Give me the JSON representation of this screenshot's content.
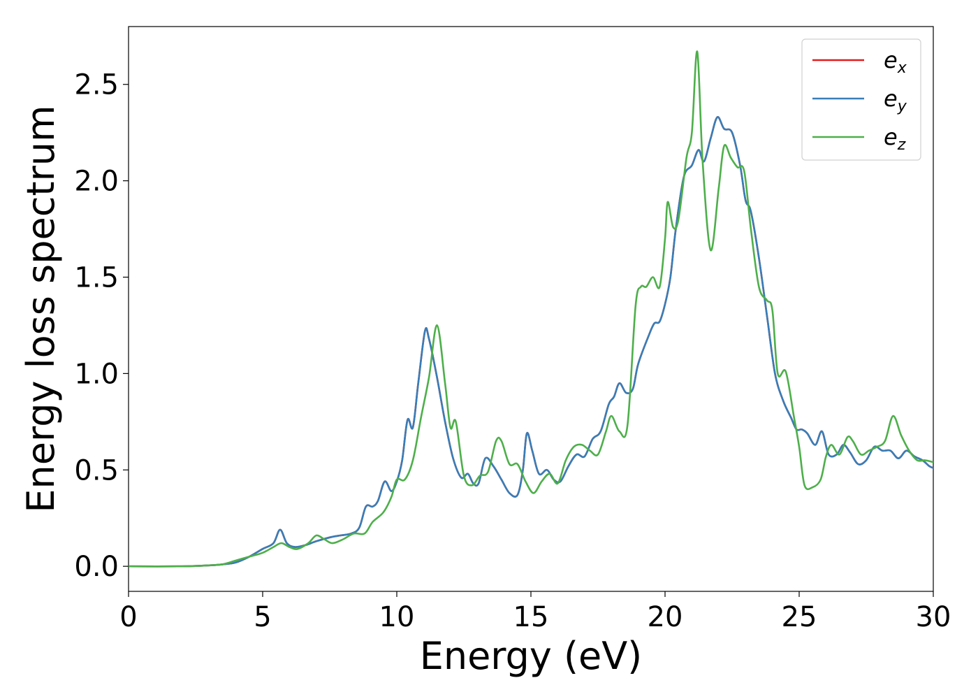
{
  "chart_data": {
    "type": "line",
    "title": "",
    "xlabel": "Energy (eV)",
    "ylabel": "Energy loss spectrum",
    "xlim": [
      0,
      30
    ],
    "ylim": [
      -0.13,
      2.8
    ],
    "xticks": [
      0,
      5,
      10,
      15,
      20,
      25,
      30
    ],
    "xtick_labels": [
      "0",
      "5",
      "10",
      "15",
      "20",
      "25",
      "30"
    ],
    "yticks": [
      0.0,
      0.5,
      1.0,
      1.5,
      2.0,
      2.5
    ],
    "ytick_labels": [
      "0.0",
      "0.5",
      "1.0",
      "1.5",
      "2.0",
      "2.5"
    ],
    "grid": false,
    "legend_position": "top-right",
    "series": [
      {
        "name": "e_x",
        "legend_base": "e",
        "legend_sub": "x",
        "color": "#e41a1c",
        "x": [
          0,
          2,
          3,
          3.5,
          4,
          4.5,
          5,
          5.4,
          5.65,
          5.9,
          6.2,
          6.6,
          7,
          7.5,
          7.9,
          8.3,
          8.6,
          8.85,
          9.1,
          9.3,
          9.55,
          9.8,
          10.0,
          10.2,
          10.4,
          10.6,
          10.8,
          11.05,
          11.2,
          11.5,
          11.8,
          12.1,
          12.4,
          12.65,
          12.85,
          13.05,
          13.3,
          13.6,
          13.9,
          14.2,
          14.5,
          14.7,
          14.85,
          15.05,
          15.3,
          15.6,
          15.85,
          16.1,
          16.4,
          16.7,
          17.0,
          17.3,
          17.6,
          17.9,
          18.1,
          18.3,
          18.55,
          18.8,
          19.0,
          19.4,
          19.6,
          19.8,
          20.0,
          20.2,
          20.4,
          20.7,
          21.0,
          21.25,
          21.45,
          21.7,
          21.95,
          22.2,
          22.5,
          22.8,
          23.0,
          23.2,
          23.5,
          23.8,
          24.1,
          24.4,
          24.7,
          24.9,
          25.1,
          25.3,
          25.6,
          25.85,
          26.1,
          26.4,
          26.65,
          26.9,
          27.2,
          27.5,
          27.8,
          28.1,
          28.4,
          28.7,
          29.0,
          29.3,
          29.6,
          29.85,
          30
        ],
        "y": [
          0.0,
          0.0,
          0.005,
          0.01,
          0.02,
          0.05,
          0.09,
          0.12,
          0.19,
          0.12,
          0.1,
          0.11,
          0.13,
          0.15,
          0.16,
          0.17,
          0.2,
          0.31,
          0.31,
          0.34,
          0.44,
          0.39,
          0.44,
          0.55,
          0.76,
          0.72,
          0.95,
          1.22,
          1.18,
          0.98,
          0.75,
          0.56,
          0.46,
          0.48,
          0.43,
          0.43,
          0.56,
          0.52,
          0.45,
          0.38,
          0.37,
          0.5,
          0.69,
          0.6,
          0.48,
          0.5,
          0.45,
          0.44,
          0.52,
          0.58,
          0.57,
          0.66,
          0.7,
          0.84,
          0.88,
          0.95,
          0.9,
          0.92,
          1.05,
          1.2,
          1.26,
          1.27,
          1.36,
          1.5,
          1.75,
          2.02,
          2.08,
          2.16,
          2.1,
          2.22,
          2.33,
          2.27,
          2.25,
          2.08,
          1.9,
          1.84,
          1.6,
          1.3,
          1.0,
          0.86,
          0.77,
          0.71,
          0.71,
          0.69,
          0.63,
          0.7,
          0.58,
          0.58,
          0.63,
          0.59,
          0.53,
          0.55,
          0.62,
          0.6,
          0.6,
          0.56,
          0.6,
          0.57,
          0.55,
          0.52,
          0.51
        ]
      },
      {
        "name": "e_y",
        "legend_base": "e",
        "legend_sub": "y",
        "color": "#377eb8",
        "x": [
          0,
          2,
          3,
          3.5,
          4,
          4.5,
          5,
          5.4,
          5.65,
          5.9,
          6.2,
          6.6,
          7,
          7.5,
          7.9,
          8.3,
          8.6,
          8.85,
          9.1,
          9.3,
          9.55,
          9.8,
          10.0,
          10.2,
          10.4,
          10.6,
          10.8,
          11.05,
          11.2,
          11.5,
          11.8,
          12.1,
          12.4,
          12.65,
          12.85,
          13.05,
          13.3,
          13.6,
          13.9,
          14.2,
          14.5,
          14.7,
          14.85,
          15.05,
          15.3,
          15.6,
          15.85,
          16.1,
          16.4,
          16.7,
          17.0,
          17.3,
          17.6,
          17.9,
          18.1,
          18.3,
          18.55,
          18.8,
          19.0,
          19.4,
          19.6,
          19.8,
          20.0,
          20.2,
          20.4,
          20.7,
          21.0,
          21.25,
          21.45,
          21.7,
          21.95,
          22.2,
          22.5,
          22.8,
          23.0,
          23.2,
          23.5,
          23.8,
          24.1,
          24.4,
          24.7,
          24.9,
          25.1,
          25.3,
          25.6,
          25.85,
          26.1,
          26.4,
          26.65,
          26.9,
          27.2,
          27.5,
          27.8,
          28.1,
          28.4,
          28.7,
          29.0,
          29.3,
          29.6,
          29.85,
          30
        ],
        "y": [
          0.0,
          0.0,
          0.005,
          0.01,
          0.02,
          0.05,
          0.09,
          0.12,
          0.19,
          0.12,
          0.1,
          0.11,
          0.13,
          0.15,
          0.16,
          0.17,
          0.2,
          0.31,
          0.31,
          0.34,
          0.44,
          0.39,
          0.44,
          0.55,
          0.76,
          0.72,
          0.95,
          1.22,
          1.18,
          0.98,
          0.75,
          0.56,
          0.46,
          0.48,
          0.43,
          0.43,
          0.56,
          0.52,
          0.45,
          0.38,
          0.37,
          0.5,
          0.69,
          0.6,
          0.48,
          0.5,
          0.45,
          0.44,
          0.52,
          0.58,
          0.57,
          0.66,
          0.7,
          0.84,
          0.88,
          0.95,
          0.9,
          0.92,
          1.05,
          1.2,
          1.26,
          1.27,
          1.36,
          1.5,
          1.75,
          2.02,
          2.08,
          2.16,
          2.1,
          2.22,
          2.33,
          2.27,
          2.25,
          2.08,
          1.9,
          1.84,
          1.6,
          1.3,
          1.0,
          0.86,
          0.77,
          0.71,
          0.71,
          0.69,
          0.63,
          0.7,
          0.58,
          0.58,
          0.63,
          0.59,
          0.53,
          0.55,
          0.62,
          0.6,
          0.6,
          0.56,
          0.6,
          0.57,
          0.55,
          0.52,
          0.51
        ]
      },
      {
        "name": "e_z",
        "legend_base": "e",
        "legend_sub": "z",
        "color": "#4daf4a",
        "x": [
          0,
          2,
          3,
          3.5,
          4,
          4.5,
          5,
          5.4,
          5.7,
          6.0,
          6.3,
          6.7,
          7.0,
          7.3,
          7.6,
          8.0,
          8.4,
          8.8,
          9.1,
          9.5,
          9.8,
          10.0,
          10.3,
          10.6,
          10.9,
          11.2,
          11.5,
          11.8,
          12.0,
          12.2,
          12.5,
          12.8,
          13.1,
          13.4,
          13.7,
          13.9,
          14.2,
          14.5,
          14.8,
          15.1,
          15.4,
          15.7,
          16.0,
          16.3,
          16.6,
          16.9,
          17.2,
          17.5,
          17.8,
          18.0,
          18.3,
          18.6,
          18.9,
          19.1,
          19.3,
          19.55,
          19.8,
          20.0,
          20.1,
          20.3,
          20.5,
          20.8,
          21.0,
          21.2,
          21.4,
          21.7,
          22.0,
          22.2,
          22.45,
          22.7,
          22.95,
          23.2,
          23.5,
          23.8,
          24.0,
          24.2,
          24.5,
          24.8,
          25.0,
          25.2,
          25.5,
          25.8,
          26.0,
          26.2,
          26.5,
          26.8,
          27.0,
          27.3,
          27.6,
          27.9,
          28.2,
          28.5,
          28.8,
          29.1,
          29.4,
          29.7,
          30
        ],
        "y": [
          0.0,
          0.0,
          0.005,
          0.01,
          0.03,
          0.05,
          0.07,
          0.1,
          0.12,
          0.1,
          0.09,
          0.12,
          0.16,
          0.14,
          0.12,
          0.14,
          0.17,
          0.17,
          0.23,
          0.28,
          0.36,
          0.45,
          0.45,
          0.55,
          0.77,
          0.98,
          1.25,
          0.95,
          0.72,
          0.75,
          0.47,
          0.42,
          0.47,
          0.49,
          0.65,
          0.65,
          0.53,
          0.53,
          0.44,
          0.38,
          0.44,
          0.48,
          0.43,
          0.55,
          0.62,
          0.63,
          0.6,
          0.58,
          0.7,
          0.78,
          0.7,
          0.73,
          1.35,
          1.45,
          1.45,
          1.5,
          1.45,
          1.7,
          1.89,
          1.76,
          1.8,
          2.12,
          2.25,
          2.67,
          2.1,
          1.64,
          1.96,
          2.18,
          2.12,
          2.07,
          2.05,
          1.75,
          1.45,
          1.38,
          1.33,
          1.0,
          1.01,
          0.78,
          0.62,
          0.42,
          0.41,
          0.45,
          0.57,
          0.63,
          0.58,
          0.67,
          0.65,
          0.58,
          0.6,
          0.62,
          0.65,
          0.78,
          0.68,
          0.6,
          0.55,
          0.55,
          0.54
        ]
      }
    ]
  }
}
